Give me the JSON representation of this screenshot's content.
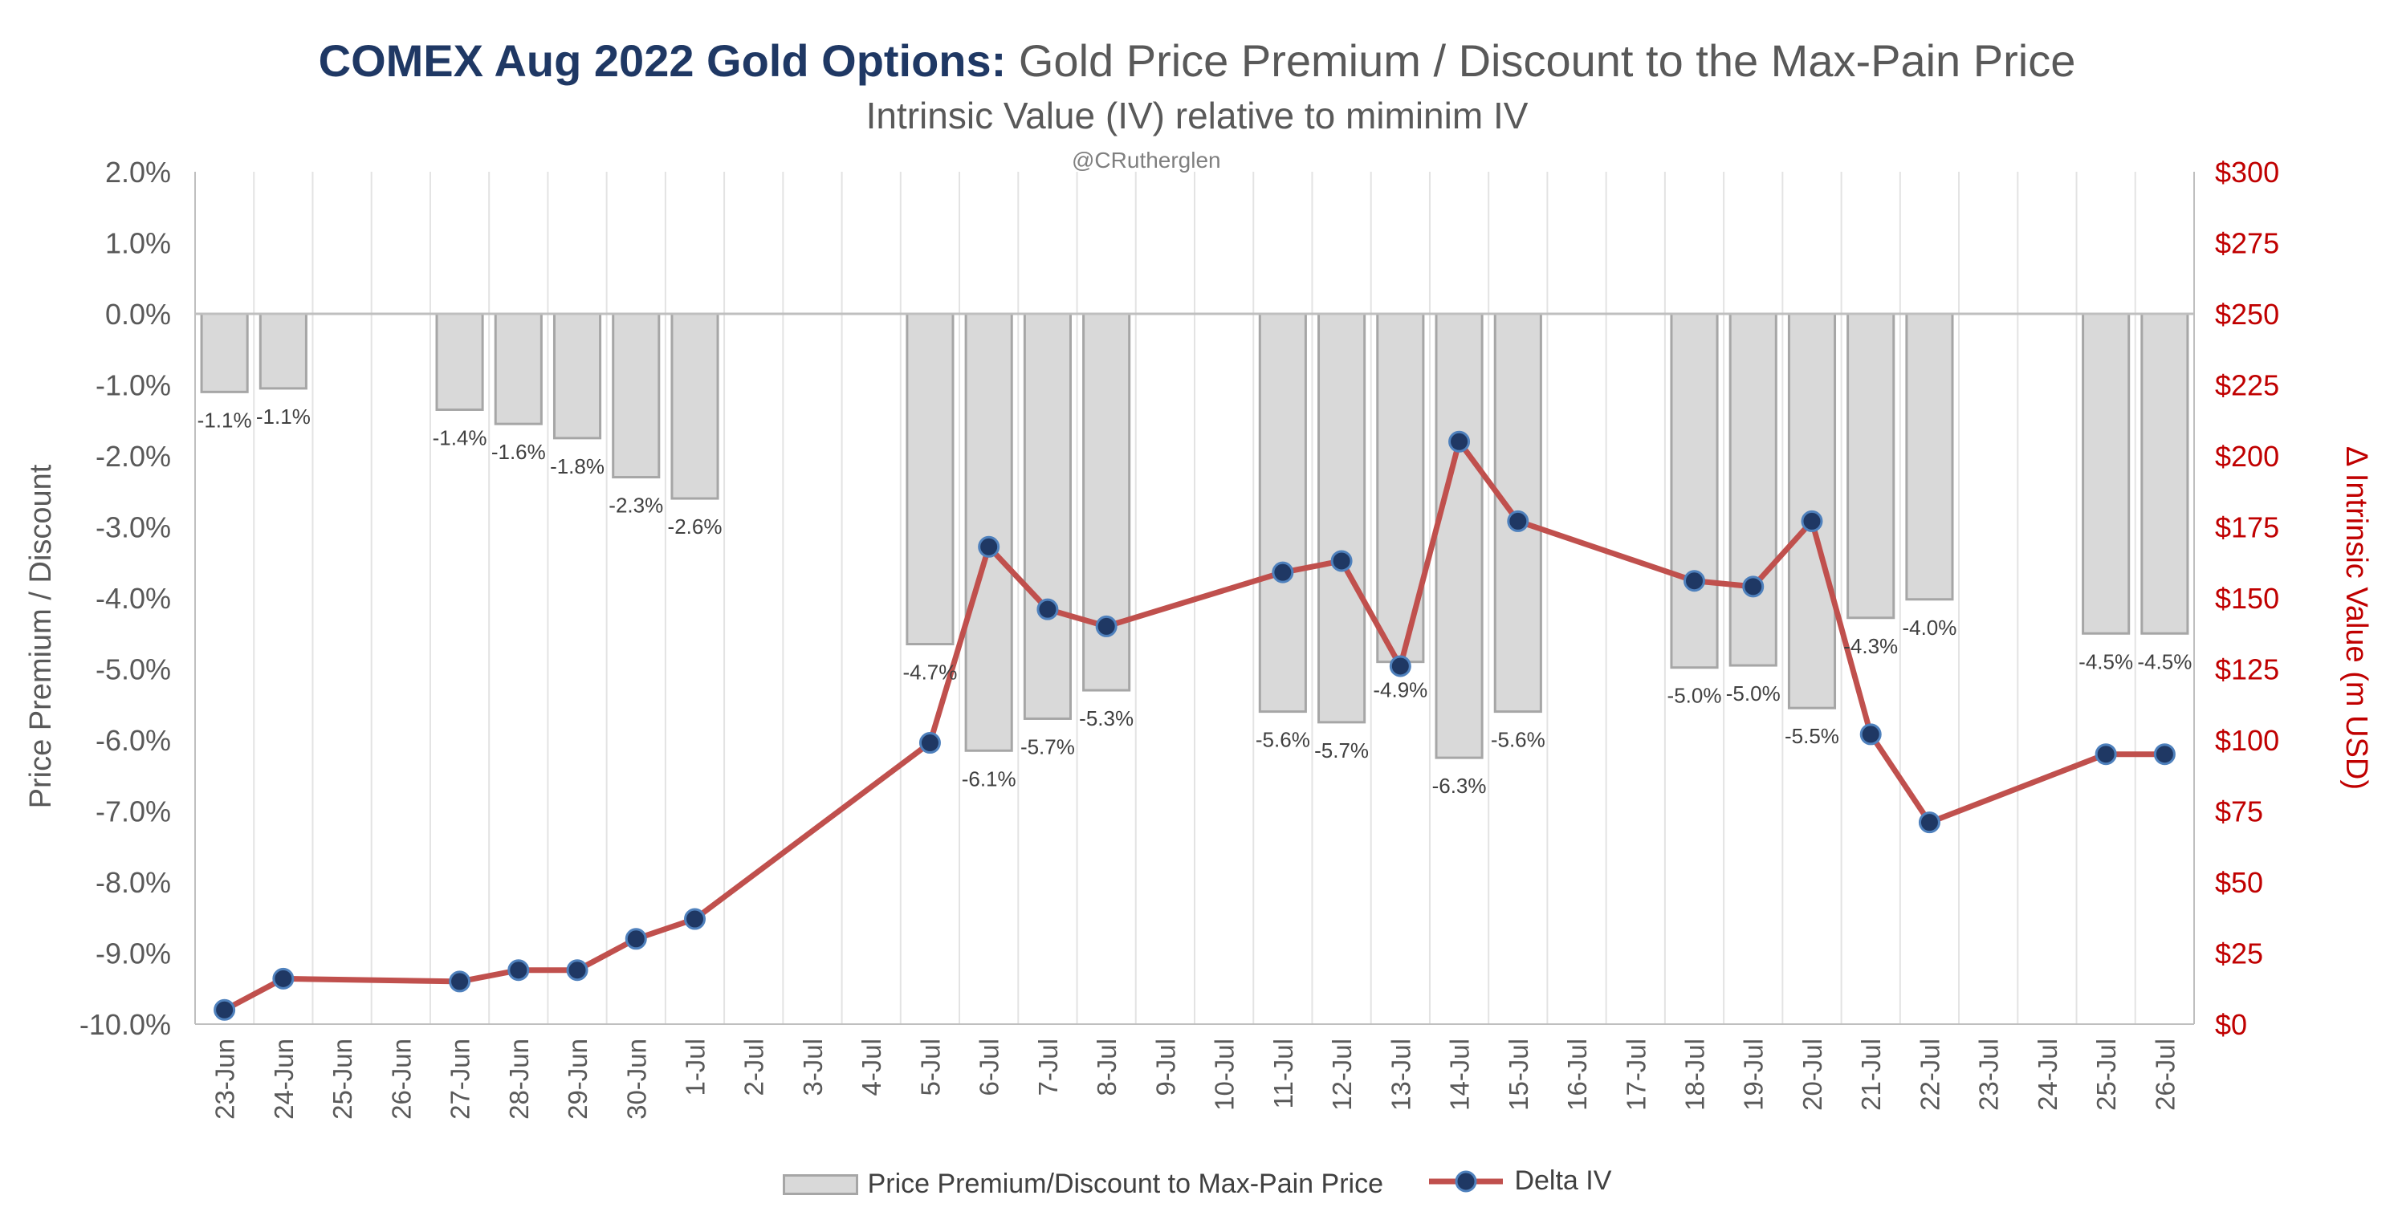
{
  "chart_data": {
    "type": "bar",
    "title_bold": "COMEX Aug 2022 Gold Options:",
    "title_rest": "Gold Price Premium / Discount to the Max-Pain Price",
    "subtitle": "Intrinsic Value (IV) relative to miminim IV",
    "watermark": "@CRutherglen",
    "ylabel_left": "Price Premium / Discount",
    "ylabel_right": "Δ Intrinsic Value (m USD)",
    "ylim_left": [
      -10,
      2
    ],
    "ylim_right": [
      0,
      300
    ],
    "left_ticks": [
      "2.0%",
      "1.0%",
      "0.0%",
      "-1.0%",
      "-2.0%",
      "-3.0%",
      "-4.0%",
      "-5.0%",
      "-6.0%",
      "-7.0%",
      "-8.0%",
      "-9.0%",
      "-10.0%"
    ],
    "right_ticks": [
      "$300",
      "$275",
      "$250",
      "$225",
      "$200",
      "$175",
      "$150",
      "$125",
      "$100",
      "$75",
      "$50",
      "$25",
      "$0"
    ],
    "categories": [
      "23-Jun",
      "24-Jun",
      "25-Jun",
      "26-Jun",
      "27-Jun",
      "28-Jun",
      "29-Jun",
      "30-Jun",
      "1-Jul",
      "2-Jul",
      "3-Jul",
      "4-Jul",
      "5-Jul",
      "6-Jul",
      "7-Jul",
      "8-Jul",
      "9-Jul",
      "10-Jul",
      "11-Jul",
      "12-Jul",
      "13-Jul",
      "14-Jul",
      "15-Jul",
      "16-Jul",
      "17-Jul",
      "18-Jul",
      "19-Jul",
      "20-Jul",
      "21-Jul",
      "22-Jul",
      "23-Jul",
      "24-Jul",
      "25-Jul",
      "26-Jul"
    ],
    "series": [
      {
        "name": "Price Premium/Discount to Max-Pain Price",
        "type": "bar",
        "axis": "left",
        "values": [
          -1.1,
          -1.05,
          null,
          null,
          -1.35,
          -1.55,
          -1.75,
          -2.3,
          -2.6,
          null,
          null,
          null,
          -4.65,
          -6.15,
          -5.7,
          -5.3,
          null,
          null,
          -5.6,
          -5.75,
          -4.9,
          -6.25,
          -5.6,
          null,
          null,
          -4.98,
          -4.95,
          -5.55,
          -4.28,
          -4.02,
          null,
          null,
          -4.5,
          -4.5
        ],
        "labels": [
          "-1.1%",
          "-1.1%",
          "",
          "",
          "-1.4%",
          "-1.6%",
          "-1.8%",
          "-2.3%",
          "-2.6%",
          "",
          "",
          "",
          "-4.7%",
          "-6.1%",
          "-5.7%",
          "-5.3%",
          "",
          "",
          "-5.6%",
          "-5.7%",
          "-4.9%",
          "-6.3%",
          "-5.6%",
          "",
          "",
          "-5.0%",
          "-5.0%",
          "-5.5%",
          "-4.3%",
          "-4.0%",
          "",
          "",
          "-4.5%",
          "-4.5%"
        ]
      },
      {
        "name": "Delta IV",
        "type": "line",
        "axis": "right",
        "values": [
          5,
          16,
          null,
          null,
          15,
          19,
          19,
          30,
          37,
          null,
          null,
          null,
          99,
          168,
          146,
          140,
          null,
          null,
          159,
          163,
          126,
          205,
          177,
          null,
          null,
          156,
          154,
          177,
          102,
          71,
          null,
          null,
          95,
          95
        ]
      }
    ],
    "legend": [
      "Price Premium/Discount to Max-Pain Price",
      "Delta IV"
    ],
    "legend_position": "bottom",
    "grid": "vertical",
    "colors": {
      "bar_fill": "#d9d9d9",
      "bar_stroke": "#a6a6a6",
      "line": "#c0504d",
      "marker_fill": "#1f3864",
      "marker_stroke": "#4f81bd",
      "right_axis": "#c00000",
      "text": "#595959",
      "title_bold": "#1f3864"
    }
  }
}
